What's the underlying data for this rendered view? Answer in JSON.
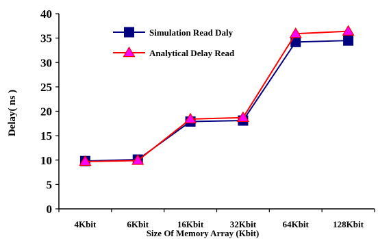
{
  "chart_data": {
    "type": "line",
    "categories": [
      "4Kbit",
      "6Kbit",
      "16Kbit",
      "32Kbit",
      "64Kbit",
      "128Kbit"
    ],
    "series": [
      {
        "name": "Simulation Read Daly",
        "values": [
          9.8,
          10.1,
          17.9,
          18.1,
          34.2,
          34.5
        ],
        "color": "#000080",
        "marker": "square"
      },
      {
        "name": "Analytical Delay Read",
        "values": [
          9.7,
          9.9,
          18.4,
          18.7,
          35.9,
          36.4
        ],
        "color": "#ff0000",
        "marker_fill": "#ff00ff",
        "marker": "triangle"
      }
    ],
    "y_ticks": [
      "0",
      "5",
      "10",
      "15",
      "20",
      "25",
      "30",
      "35",
      "40"
    ],
    "ylim": [
      0,
      40
    ],
    "ylabel": "Delay( ns )",
    "xlabel": "Size Of Memory Array (Kbit)",
    "title": "",
    "grid": false,
    "legend_position": "top-left"
  }
}
